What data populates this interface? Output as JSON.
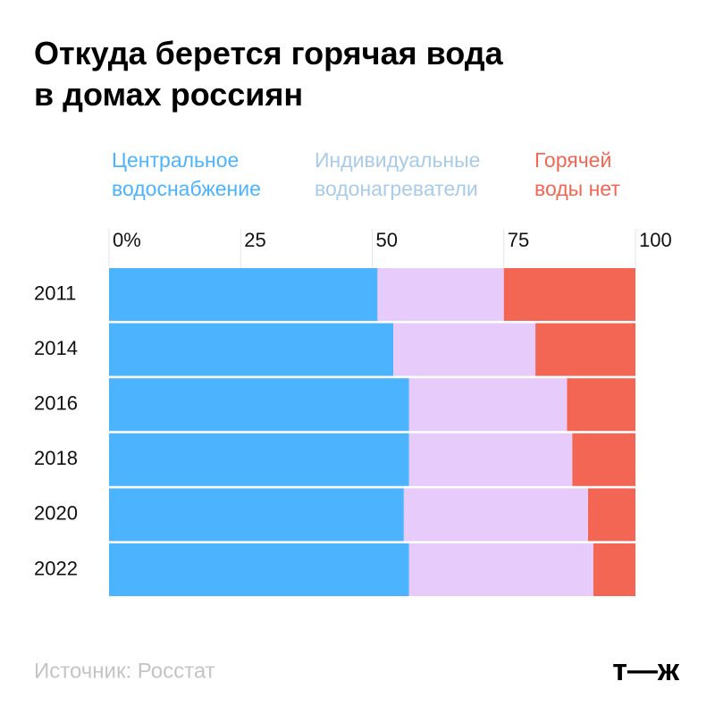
{
  "chart_data": {
    "type": "stacked_barh",
    "title": "Откуда берется горячая вода\nв домах россиян",
    "categories": [
      "2011",
      "2014",
      "2016",
      "2018",
      "2020",
      "2022"
    ],
    "series": [
      {
        "name": "Центральное\nводоснабжение",
        "color": "#4cb3ff",
        "values": [
          51,
          54,
          57,
          57,
          56,
          57
        ]
      },
      {
        "name": "Индивидуальные\nводонагреватели",
        "color": "#e7cbfa",
        "values": [
          24,
          27,
          30,
          31,
          35,
          35
        ]
      },
      {
        "name": "Горячей\nводы нет",
        "color": "#f26653",
        "values": [
          25,
          19,
          13,
          12,
          9,
          8
        ]
      }
    ],
    "xlim": [
      0,
      100
    ],
    "xticks": [
      {
        "value": 0,
        "label": "0%"
      },
      25,
      50,
      75,
      100
    ],
    "grid": true,
    "source": "Источник: Росстат",
    "logo": "т—ж"
  }
}
